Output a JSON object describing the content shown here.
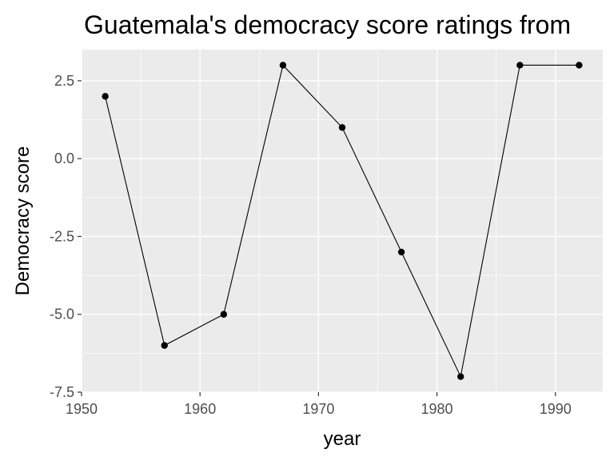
{
  "chart_data": {
    "type": "line",
    "title": "Guatemala's democracy score ratings from",
    "xlabel": "year",
    "ylabel": "Democracy score",
    "x": [
      1952,
      1957,
      1962,
      1967,
      1972,
      1977,
      1982,
      1987,
      1992
    ],
    "series": [
      {
        "values": [
          2,
          -6,
          -5,
          3,
          1,
          -3,
          -7,
          3,
          3
        ]
      }
    ],
    "xlim": [
      1950,
      1994
    ],
    "ylim": [
      -7.5,
      3.5
    ],
    "x_ticks": [
      1950,
      1960,
      1970,
      1980,
      1990
    ],
    "x_tick_labels": [
      "1950",
      "1960",
      "1970",
      "1980",
      "1990"
    ],
    "y_ticks": [
      -7.5,
      -5.0,
      -2.5,
      0.0,
      2.5
    ],
    "y_tick_labels": [
      "-7.5",
      "-5.0",
      "-2.5",
      "0.0",
      "2.5"
    ],
    "grid": true,
    "colors": {
      "panel": "#ebebeb",
      "grid": "#ffffff",
      "line": "#000000",
      "tick_label": "#4d4d4d"
    }
  }
}
